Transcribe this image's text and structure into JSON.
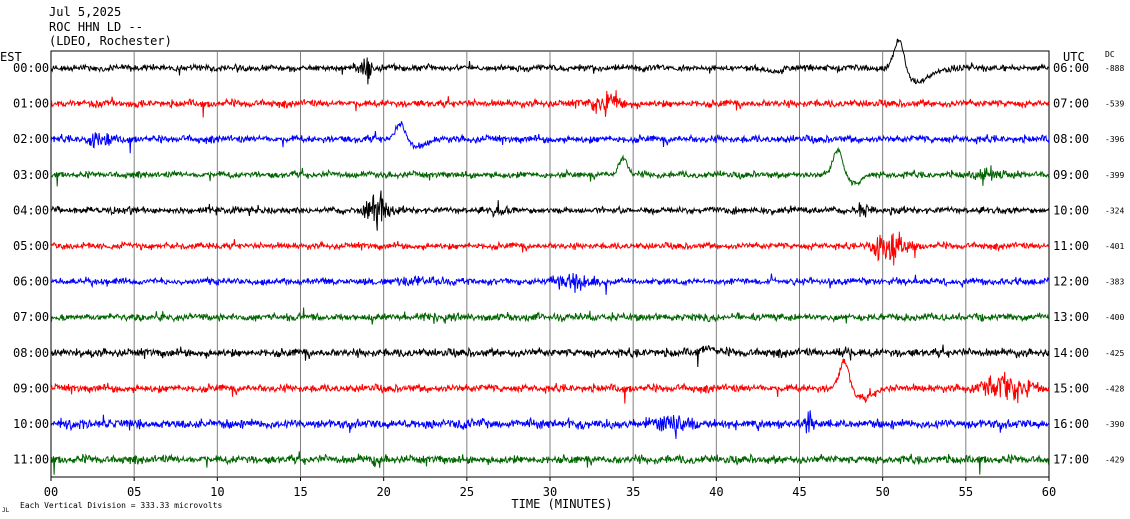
{
  "header": {
    "date": "Jul 5,2025",
    "station": "ROC HHN LD --",
    "network": "(LDEO, Rochester)"
  },
  "labels": {
    "left_zone": "EST",
    "right_zone": "UTC",
    "dc": "DC",
    "xlabel": "TIME (MINUTES)",
    "footer": "Each Vertical Division =  333.33 microvolts",
    "footer_mark": "JL"
  },
  "colors": {
    "black": "#000000",
    "red": "#ff0000",
    "blue": "#0000ff",
    "green": "#006400",
    "grid": "#808080"
  },
  "chart_data": {
    "type": "line",
    "title": "",
    "xlabel": "TIME (MINUTES)",
    "ylabel": "",
    "xlim": [
      0,
      60
    ],
    "x_ticks": [
      "00",
      "05",
      "10",
      "15",
      "20",
      "25",
      "30",
      "35",
      "40",
      "45",
      "50",
      "55",
      "60"
    ],
    "grid": true,
    "series": [
      {
        "left": "00:00",
        "right": "06:00",
        "dc": "-888",
        "color": "#000000",
        "amp": 2.2,
        "events": [
          {
            "t": 19.0,
            "a": 10,
            "w": 0.4,
            "k": "burst"
          },
          {
            "t": 43.5,
            "a": 5,
            "w": 0.5,
            "k": "bump"
          },
          {
            "t": 51.0,
            "a": -34,
            "w": 0.45,
            "k": "bump"
          },
          {
            "t": 52.0,
            "a": 14,
            "w": 1.2,
            "k": "bump"
          }
        ]
      },
      {
        "left": "01:00",
        "right": "07:00",
        "dc": "-539",
        "color": "#ff0000",
        "amp": 2.6,
        "events": [
          {
            "t": 33.5,
            "a": 9,
            "w": 1.2,
            "k": "burst"
          }
        ]
      },
      {
        "left": "02:00",
        "right": "08:00",
        "dc": "-396",
        "color": "#0000ff",
        "amp": 2.6,
        "events": [
          {
            "t": 3.0,
            "a": 8,
            "w": 0.8,
            "k": "burst"
          },
          {
            "t": 21.0,
            "a": -16,
            "w": 0.4,
            "k": "bump"
          },
          {
            "t": 22.0,
            "a": 8,
            "w": 0.7,
            "k": "bump"
          }
        ]
      },
      {
        "left": "03:00",
        "right": "09:00",
        "dc": "-399",
        "color": "#006400",
        "amp": 2.3,
        "events": [
          {
            "t": 34.4,
            "a": -18,
            "w": 0.35,
            "k": "bump"
          },
          {
            "t": 47.3,
            "a": -24,
            "w": 0.4,
            "k": "bump"
          },
          {
            "t": 48.3,
            "a": 8,
            "w": 0.6,
            "k": "bump"
          },
          {
            "t": 56.5,
            "a": 5,
            "w": 1.5,
            "k": "burst"
          }
        ]
      },
      {
        "left": "04:00",
        "right": "10:00",
        "dc": "-324",
        "color": "#000000",
        "amp": 2.4,
        "events": [
          {
            "t": 19.5,
            "a": 14,
            "w": 0.8,
            "k": "burst"
          },
          {
            "t": 27.0,
            "a": 6,
            "w": 0.5,
            "k": "burst"
          },
          {
            "t": 48.8,
            "a": 6,
            "w": 0.5,
            "k": "burst"
          }
        ]
      },
      {
        "left": "05:00",
        "right": "11:00",
        "dc": "-401",
        "color": "#ff0000",
        "amp": 2.3,
        "events": [
          {
            "t": 50.5,
            "a": 18,
            "w": 1.0,
            "k": "burst"
          }
        ]
      },
      {
        "left": "06:00",
        "right": "12:00",
        "dc": "-383",
        "color": "#0000ff",
        "amp": 2.5,
        "events": [
          {
            "t": 21.5,
            "a": 6,
            "w": 0.8,
            "k": "burst"
          },
          {
            "t": 31.5,
            "a": 7,
            "w": 1.3,
            "k": "burst"
          }
        ]
      },
      {
        "left": "07:00",
        "right": "13:00",
        "dc": "-400",
        "color": "#006400",
        "amp": 2.6,
        "events": []
      },
      {
        "left": "08:00",
        "right": "14:00",
        "dc": "-425",
        "color": "#000000",
        "amp": 3.0,
        "events": [
          {
            "t": 39.5,
            "a": -6,
            "w": 0.5,
            "k": "bump"
          },
          {
            "t": 47.5,
            "a": 5,
            "w": 0.6,
            "k": "burst"
          }
        ]
      },
      {
        "left": "09:00",
        "right": "15:00",
        "dc": "-428",
        "color": "#ff0000",
        "amp": 2.8,
        "events": [
          {
            "t": 47.7,
            "a": -28,
            "w": 0.4,
            "k": "bump"
          },
          {
            "t": 48.9,
            "a": 10,
            "w": 0.8,
            "k": "bump"
          },
          {
            "t": 57.5,
            "a": 12,
            "w": 1.5,
            "k": "burst"
          }
        ]
      },
      {
        "left": "10:00",
        "right": "16:00",
        "dc": "-390",
        "color": "#0000ff",
        "amp": 3.2,
        "events": [
          {
            "t": 37.5,
            "a": 8,
            "w": 1.5,
            "k": "burst"
          },
          {
            "t": 45.5,
            "a": 10,
            "w": 0.3,
            "k": "burst"
          }
        ]
      },
      {
        "left": "11:00",
        "right": "17:00",
        "dc": "-429",
        "color": "#006400",
        "amp": 3.0,
        "events": [
          {
            "t": 19.5,
            "a": 5,
            "w": 0.7,
            "k": "burst"
          }
        ]
      }
    ]
  }
}
